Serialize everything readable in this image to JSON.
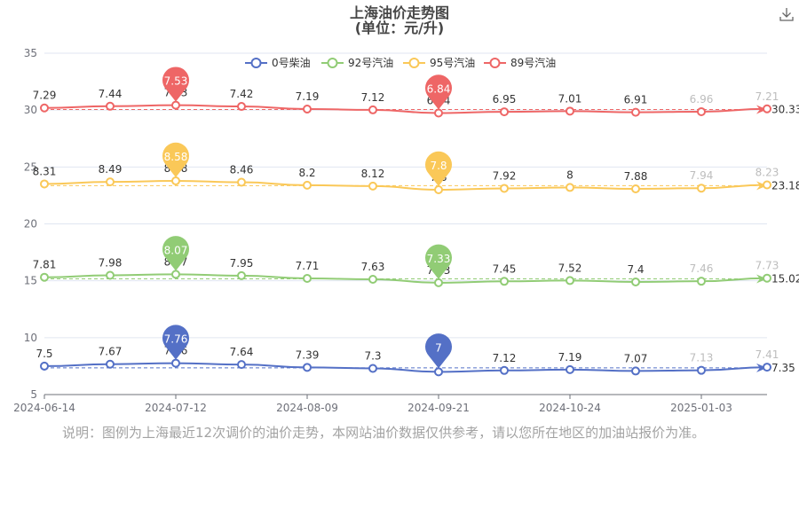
{
  "chart_data": {
    "type": "line",
    "title": "上海油价走势图",
    "subtitle": "(单位：元/升)",
    "x_ticks": [
      "2024-06-14",
      "2024-07-12",
      "2024-08-09",
      "2024-09-21",
      "2024-10-24",
      "2025-01-03"
    ],
    "ylim": [
      5,
      35
    ],
    "y_ticks": [
      "5",
      "10",
      "15",
      "20",
      "25",
      "30",
      "35"
    ],
    "legend_position": "top",
    "grid": true,
    "series": [
      {
        "name": "0号柴油",
        "color": "#5470c6",
        "values": [
          7.5,
          7.67,
          7.76,
          7.64,
          7.39,
          7.3,
          7,
          7.12,
          7.19,
          7.07,
          7.13,
          7.41
        ],
        "labels": [
          "7.5",
          "7.67",
          "7.76",
          "7.64",
          "7.39",
          "7.3",
          "7",
          "7.12",
          "7.19",
          "7.07",
          "7.13",
          "7.41"
        ],
        "max_label": "7.76",
        "min_label": "7",
        "avg_label": "7.35"
      },
      {
        "name": "92号汽油",
        "color": "#91cc75",
        "values": [
          7.81,
          7.98,
          8.07,
          7.95,
          7.71,
          7.63,
          7.33,
          7.45,
          7.52,
          7.4,
          7.46,
          7.73
        ],
        "labels": [
          "7.81",
          "7.98",
          "8.07",
          "7.95",
          "7.71",
          "7.63",
          "7.33",
          "7.45",
          "7.52",
          "7.4",
          "7.46",
          "7.73"
        ],
        "max_label": "8.07",
        "min_label": "7.33",
        "avg_label": "15.02"
      },
      {
        "name": "95号汽油",
        "color": "#fac858",
        "values": [
          8.31,
          8.49,
          8.58,
          8.46,
          8.2,
          8.12,
          7.8,
          7.92,
          8,
          7.88,
          7.94,
          8.23
        ],
        "labels": [
          "8.31",
          "8.49",
          "8.58",
          "8.46",
          "8.2",
          "8.12",
          "7.8",
          "7.92",
          "8",
          "7.88",
          "7.94",
          "8.23"
        ],
        "max_label": "8.58",
        "min_label": "7.8",
        "avg_label": "23.18"
      },
      {
        "name": "89号汽油",
        "color": "#ee6666",
        "values": [
          7.29,
          7.44,
          7.53,
          7.42,
          7.19,
          7.12,
          6.84,
          6.95,
          7.01,
          6.91,
          6.96,
          7.21
        ],
        "labels": [
          "7.29",
          "7.44",
          "7.53",
          "7.42",
          "7.19",
          "7.12",
          "6.84",
          "6.95",
          "7.01",
          "6.91",
          "6.96",
          "7.21"
        ],
        "max_label": "7.53",
        "min_label": "6.84",
        "avg_label": "30.33"
      }
    ]
  },
  "note": "说明：图例为上海最近12次调价的油价走势，本网站油价数据仅供参考，请以您所在地区的加油站报价为准。",
  "toolbar": {
    "download_icon": "download-icon"
  }
}
